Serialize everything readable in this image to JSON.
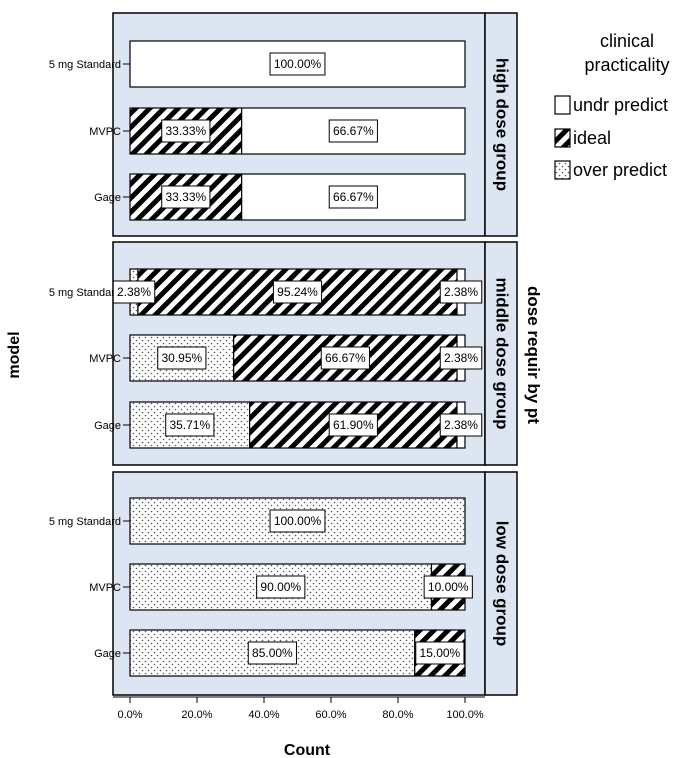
{
  "chart_data": {
    "type": "bar",
    "orientation": "horizontal",
    "stacked": true,
    "xlabel": "Count",
    "ylabel": "model",
    "facet_label": "dose requir by pt",
    "x_ticks": [
      "0.0%",
      "20.0%",
      "40.0%",
      "60.0%",
      "80.0%",
      "100.0%"
    ],
    "xlim": [
      0,
      100
    ],
    "legend": {
      "title_line1": "clinical",
      "title_line2": "practicality",
      "position": "top-right",
      "items": [
        {
          "key": "under",
          "label": "undr predict",
          "pattern": "white"
        },
        {
          "key": "ideal",
          "label": "ideal",
          "pattern": "hatch"
        },
        {
          "key": "over",
          "label": "over predict",
          "pattern": "dots"
        }
      ]
    },
    "colors": {
      "panel_bg": "#dce6f2",
      "bar_fill": "#ffffff",
      "hatch": "#000000",
      "dots": "#555555"
    },
    "panels": [
      {
        "title": "high dose group",
        "categories": [
          "5 mg Standard",
          "MVPC",
          "Gage"
        ],
        "series": [
          {
            "key": "over",
            "values": [
              0,
              0,
              0
            ]
          },
          {
            "key": "ideal",
            "values": [
              0,
              33.33,
              33.33
            ]
          },
          {
            "key": "under",
            "values": [
              100,
              66.67,
              66.67
            ]
          }
        ],
        "labels": [
          [
            "",
            "",
            "100.00%"
          ],
          [
            "",
            "33.33%",
            "66.67%"
          ],
          [
            "",
            "33.33%",
            "66.67%"
          ]
        ]
      },
      {
        "title": "middle dose group",
        "categories": [
          "5 mg Standard",
          "MVPC",
          "Gage"
        ],
        "series": [
          {
            "key": "over",
            "values": [
              2.38,
              30.95,
              35.71
            ]
          },
          {
            "key": "ideal",
            "values": [
              95.24,
              66.67,
              61.9
            ]
          },
          {
            "key": "under",
            "values": [
              2.38,
              2.38,
              2.38
            ]
          }
        ],
        "labels": [
          [
            "2.38%",
            "95.24%",
            "2.38%"
          ],
          [
            "30.95%",
            "66.67%",
            "2.38%"
          ],
          [
            "35.71%",
            "61.90%",
            "2.38%"
          ]
        ]
      },
      {
        "title": "low dose group",
        "categories": [
          "5 mg Standard",
          "MVPC",
          "Gage"
        ],
        "series": [
          {
            "key": "over",
            "values": [
              100,
              90,
              85
            ]
          },
          {
            "key": "ideal",
            "values": [
              0,
              10,
              15
            ]
          },
          {
            "key": "under",
            "values": [
              0,
              0,
              0
            ]
          }
        ],
        "labels": [
          [
            "100.00%",
            "",
            ""
          ],
          [
            "90.00%",
            "10.00%",
            ""
          ],
          [
            "85.00%",
            "15.00%",
            ""
          ]
        ]
      }
    ]
  }
}
